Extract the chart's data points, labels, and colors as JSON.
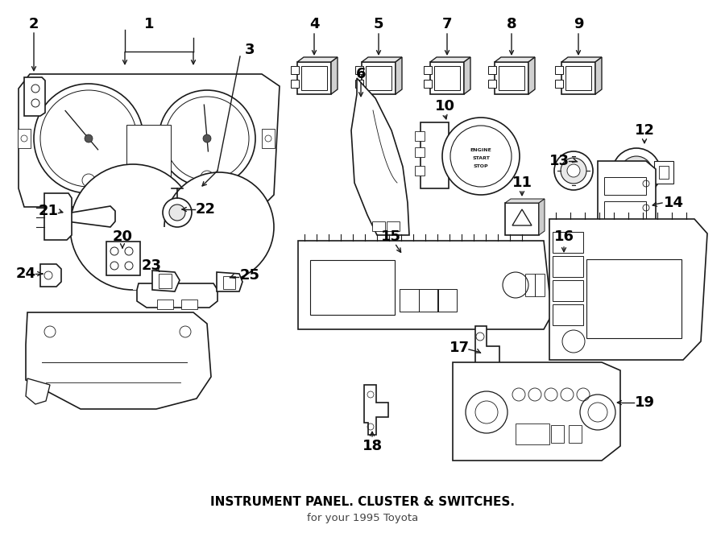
{
  "title": "INSTRUMENT PANEL. CLUSTER & SWITCHES.",
  "subtitle": "for your 1995 Toyota",
  "bg_color": "#ffffff",
  "line_color": "#1a1a1a",
  "figsize": [
    9.0,
    6.62
  ],
  "dpi": 100,
  "xlim": [
    0,
    900
  ],
  "ylim": [
    0,
    662
  ]
}
